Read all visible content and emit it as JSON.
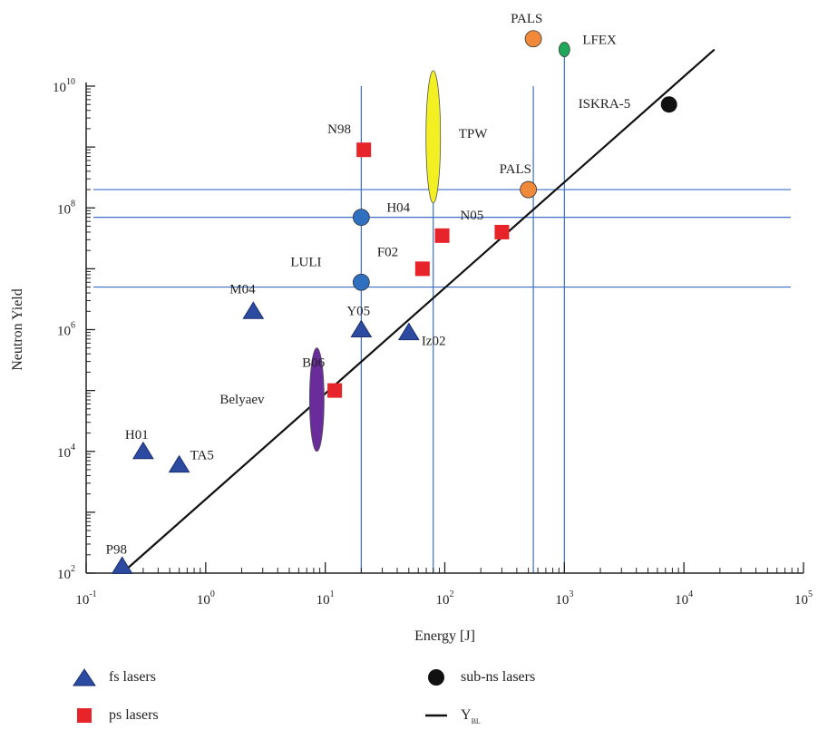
{
  "chart_data": {
    "type": "scatter",
    "xlabel": "Energy [J]",
    "ylabel": "Neutron Yield",
    "x_scale": "log",
    "y_scale": "log",
    "xlim": [
      0.1,
      100000
    ],
    "ylim": [
      100,
      10000000000
    ],
    "x_ticks": [
      {
        "value": 0.1,
        "base": "10",
        "exp": "-1"
      },
      {
        "value": 1,
        "base": "10",
        "exp": "0"
      },
      {
        "value": 10,
        "base": "10",
        "exp": "1"
      },
      {
        "value": 100,
        "base": "10",
        "exp": "2"
      },
      {
        "value": 1000,
        "base": "10",
        "exp": "3"
      },
      {
        "value": 10000,
        "base": "10",
        "exp": "4"
      },
      {
        "value": 100000,
        "base": "10",
        "exp": "5"
      }
    ],
    "y_ticks": [
      {
        "value": 100,
        "base": "10",
        "exp": "2"
      },
      {
        "value": 10000,
        "base": "10",
        "exp": "4"
      },
      {
        "value": 1000000,
        "base": "10",
        "exp": "6"
      },
      {
        "value": 100000000,
        "base": "10",
        "exp": "8"
      },
      {
        "value": 10000000000,
        "base": "10",
        "exp": "10"
      }
    ],
    "reference_lines": {
      "vertical_x": [
        20,
        80,
        550,
        1000
      ],
      "horizontal_y": [
        5000000,
        70000000,
        200000000
      ]
    },
    "fit_line": {
      "name": "Y_BL",
      "points": [
        [
          0.2,
          100
        ],
        [
          18000,
          40000000000
        ]
      ]
    },
    "series": [
      {
        "name": "fs lasers",
        "marker": "triangle",
        "color": "#2b4aa0",
        "points": [
          {
            "label": "P98",
            "x": 0.2,
            "y": 130
          },
          {
            "label": "H01",
            "x": 0.3,
            "y": 10000
          },
          {
            "label": "TA5",
            "x": 0.6,
            "y": 6000
          },
          {
            "label": "M04",
            "x": 2.5,
            "y": 2000000
          },
          {
            "label": "Y05",
            "x": 20,
            "y": 1000000
          },
          {
            "label": "Iz02",
            "x": 50,
            "y": 900000
          }
        ]
      },
      {
        "name": "ps lasers",
        "marker": "square",
        "color": "#e8242b",
        "points": [
          {
            "label": "N98",
            "x": 21,
            "y": 900000000
          },
          {
            "label": "N05",
            "x": 300,
            "y": 40000000
          },
          {
            "label": "F02",
            "x": 65,
            "y": 10000000
          },
          {
            "label": "",
            "x": 95,
            "y": 35000000
          },
          {
            "label": "B06",
            "x": 12,
            "y": 100000
          }
        ]
      },
      {
        "name": "sub-ns lasers",
        "marker": "circle",
        "color": "#111111",
        "points": [
          {
            "label": "ISKRA-5",
            "x": 7500,
            "y": 5000000000
          }
        ]
      }
    ],
    "other_markers": [
      {
        "label": "H04",
        "x": 20,
        "y": 70000000,
        "shape": "circle",
        "color": "#3070c0"
      },
      {
        "label": "LULI",
        "x": 20,
        "y": 6000000,
        "shape": "circle",
        "color": "#3070c0"
      },
      {
        "label": "PALS",
        "x": 500,
        "y": 200000000,
        "shape": "circle",
        "color": "#f08a3a"
      },
      {
        "label": "PALS",
        "x": 550,
        "y": 60000000000,
        "shape": "circle",
        "color": "#f08a3a"
      },
      {
        "label": "LFEX",
        "x": 1000,
        "y": 40000000000,
        "shape": "small-ellipse",
        "color": "#1fa85a"
      },
      {
        "label": "TPW",
        "x": 80,
        "y": 2000000000,
        "shape": "tall-ellipse",
        "color": "#f2ef22",
        "y_min": 120000000,
        "y_max": 18000000000
      },
      {
        "label": "Belyaev",
        "x": 8.5,
        "y": 80000,
        "shape": "tall-ellipse",
        "color": "#6a2c9a",
        "y_min": 10000,
        "y_max": 500000
      }
    ],
    "legend": {
      "placement": "bottom",
      "items": [
        {
          "label": "fs lasers",
          "symbol": "triangle",
          "color": "#2b4aa0"
        },
        {
          "label": "ps lasers",
          "symbol": "square",
          "color": "#e8242b"
        },
        {
          "label": "sub-ns lasers",
          "symbol": "circle",
          "color": "#111111"
        },
        {
          "label": "Y",
          "sub": "BL",
          "symbol": "line",
          "color": "#111111"
        }
      ]
    },
    "grid": false
  }
}
